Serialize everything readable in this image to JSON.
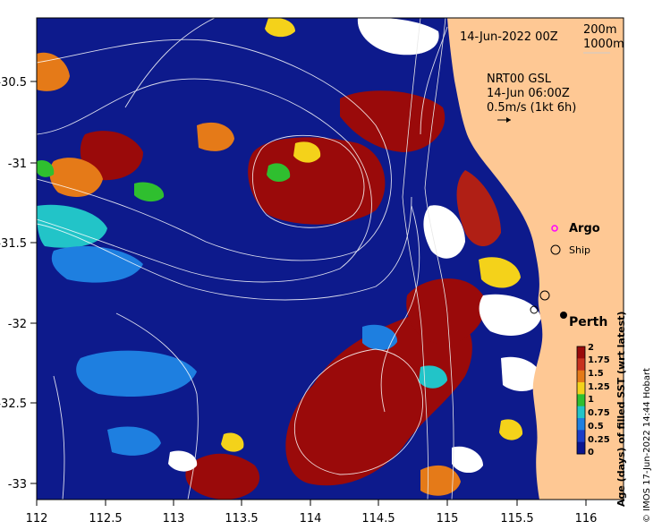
{
  "map": {
    "date_label": "14-Jun-2022 00Z",
    "contour_legend": [
      "200m",
      "1000m"
    ],
    "current_model": "NRT00 GSL",
    "current_time": "14-Jun 06:00Z",
    "current_scale": "0.5m/s (1kt 6h)"
  },
  "axes": {
    "lon_ticks": [
      "112",
      "112.5",
      "113",
      "113.5",
      "114",
      "114.5",
      "115",
      "115.5",
      "116"
    ],
    "lat_ticks": [
      "-30.5",
      "-31",
      "-31.5",
      "-32",
      "-32.5",
      "-33"
    ]
  },
  "legend": {
    "argo": "Argo",
    "ship": "Ship",
    "city": "Perth"
  },
  "colorbar": {
    "title": "Age (days) of filled SST (wrt latest)",
    "ticks": [
      "2",
      "1.75",
      "1.5",
      "1.25",
      "1",
      "0.75",
      "0.5",
      "0.25",
      "0"
    ],
    "colors": [
      "#9a0a0a",
      "#c8321e",
      "#e57a18",
      "#f4d21a",
      "#2fbf2f",
      "#22c4c8",
      "#1e7fe0",
      "#1a3cc8",
      "#0a1590"
    ]
  },
  "credit": "© IMOS 17-Jun-2022 14:44 Hobart"
}
